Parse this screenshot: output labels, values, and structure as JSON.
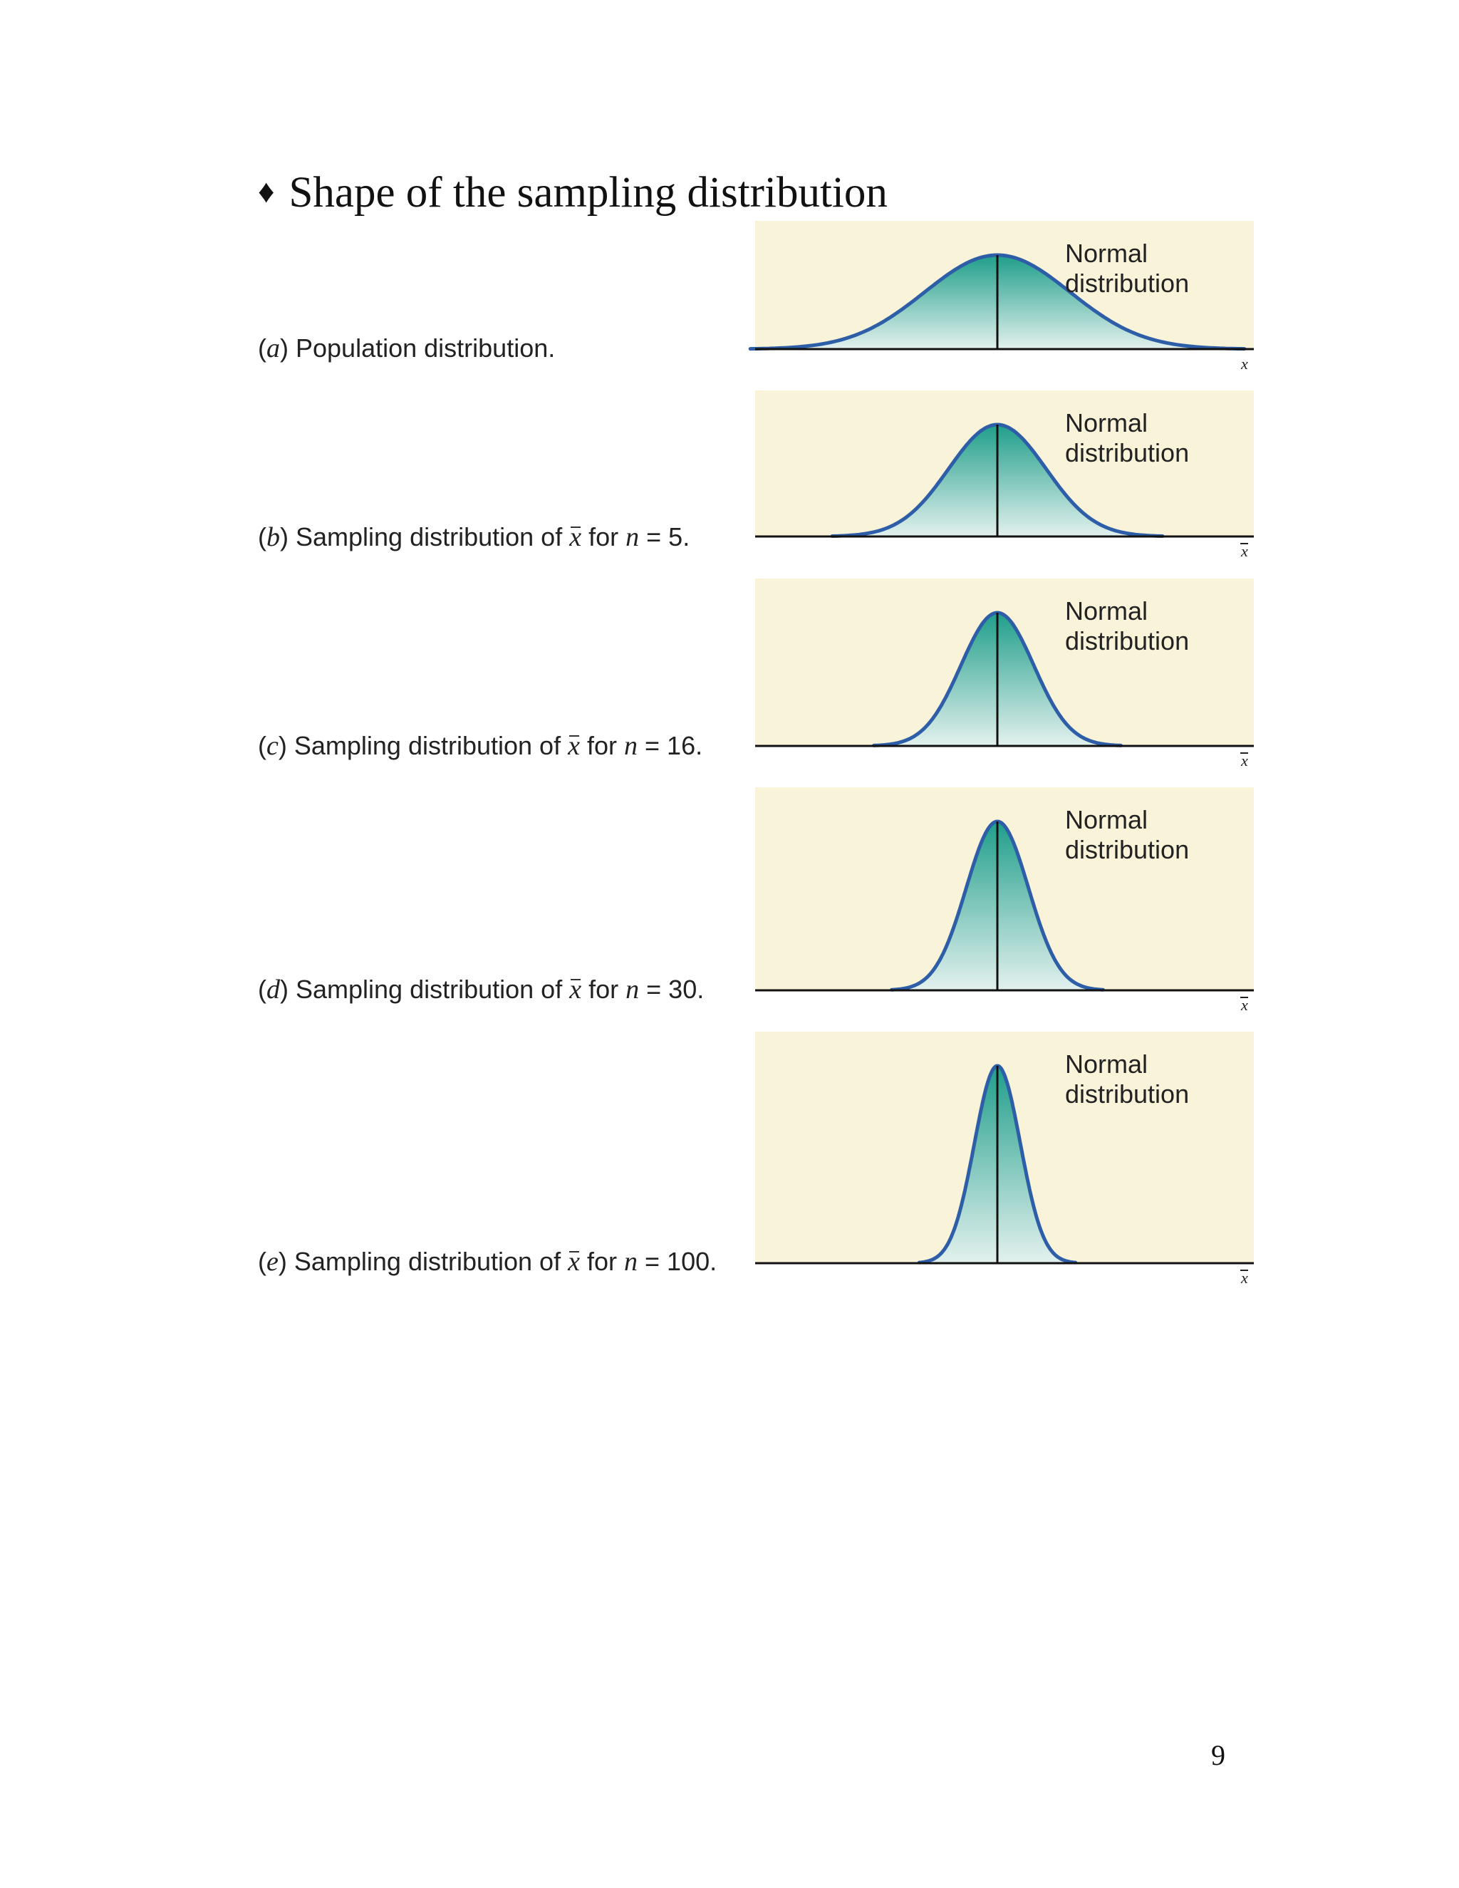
{
  "heading": {
    "bullet": "♦",
    "text": "Shape of the sampling distribution"
  },
  "panels": [
    {
      "letter": "a",
      "caption_text": "Population distribution.",
      "n": "",
      "curve_label_1": "Normal",
      "curve_label_2": "distribution",
      "axis_label": "x",
      "relative_spread": 1.0
    },
    {
      "letter": "b",
      "caption_prefix": "Sampling distribution of",
      "xbar": "x",
      "caption_for": "for",
      "n_symbol": "n",
      "n": "= 5.",
      "curve_label_1": "Normal",
      "curve_label_2": "distribution",
      "axis_label": "x",
      "relative_spread": 0.447
    },
    {
      "letter": "c",
      "caption_prefix": "Sampling distribution of",
      "xbar": "x",
      "caption_for": "for",
      "n_symbol": "n",
      "n": "= 16.",
      "curve_label_1": "Normal",
      "curve_label_2": "distribution",
      "axis_label": "x",
      "relative_spread": 0.25
    },
    {
      "letter": "d",
      "caption_prefix": "Sampling distribution of",
      "xbar": "x",
      "caption_for": "for",
      "n_symbol": "n",
      "n": "= 30.",
      "curve_label_1": "Normal",
      "curve_label_2": "distribution",
      "axis_label": "x",
      "relative_spread": 0.183
    },
    {
      "letter": "e",
      "caption_prefix": "Sampling distribution of",
      "xbar": "x",
      "caption_for": "for",
      "n_symbol": "n",
      "n": "= 100.",
      "curve_label_1": "Normal",
      "curve_label_2": "distribution",
      "axis_label": "x",
      "relative_spread": 0.1
    }
  ],
  "colors": {
    "panel_bg": "#f9f3d9",
    "curve_stroke": "#2f5ea8",
    "fill_top": "#1f9e8a",
    "fill_bottom": "#e3f1ee",
    "axis": "#111111"
  },
  "page_number": "9"
}
